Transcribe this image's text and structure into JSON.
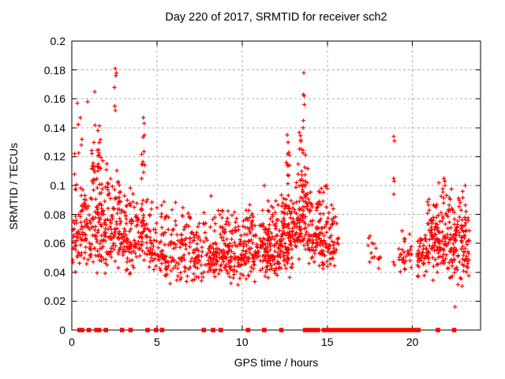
{
  "chart_data": {
    "type": "scatter",
    "title": "Day 220 of 2017, SRMTID for receiver sch2",
    "xlabel": "GPS time / hours",
    "ylabel": "SRMTID / TECUs",
    "xlim": [
      0,
      24
    ],
    "ylim": [
      0,
      0.2
    ],
    "xticks": [
      {
        "v": 0,
        "label": "0"
      },
      {
        "v": 5,
        "label": "5"
      },
      {
        "v": 10,
        "label": "10"
      },
      {
        "v": 15,
        "label": "15"
      },
      {
        "v": 20,
        "label": "20"
      }
    ],
    "yticks": [
      {
        "v": 0,
        "label": "0"
      },
      {
        "v": 0.02,
        "label": "0.02"
      },
      {
        "v": 0.04,
        "label": "0.04"
      },
      {
        "v": 0.06,
        "label": "0.06"
      },
      {
        "v": 0.08,
        "label": "0.08"
      },
      {
        "v": 0.1,
        "label": "0.1"
      },
      {
        "v": 0.12,
        "label": "0.12"
      },
      {
        "v": 0.14,
        "label": "0.14"
      },
      {
        "v": 0.16,
        "label": "0.16"
      },
      {
        "v": 0.18,
        "label": "0.18"
      },
      {
        "v": 0.2,
        "label": "0.2"
      }
    ],
    "grid": "dashed",
    "grid_color": "#b0b0b0",
    "marker": "plus",
    "marker_color": "#ff0000",
    "seed": 2017220,
    "clusters": [
      {
        "t0": 0.05,
        "t1": 0.7,
        "n": 55,
        "y_mode": 0.068,
        "y_min": 0.038,
        "y_max": 0.105
      },
      {
        "t0": 0.1,
        "t1": 0.6,
        "n": 8,
        "y_mode": 0.11,
        "y_min": 0.095,
        "y_max": 0.148
      },
      {
        "t0": 0.7,
        "t1": 2.3,
        "n": 150,
        "y_mode": 0.072,
        "y_min": 0.036,
        "y_max": 0.112
      },
      {
        "t0": 1.15,
        "t1": 1.75,
        "n": 30,
        "y_mode": 0.118,
        "y_min": 0.095,
        "y_max": 0.15
      },
      {
        "t0": 1.75,
        "t1": 2.25,
        "n": 10,
        "y_mode": 0.1,
        "y_min": 0.09,
        "y_max": 0.125
      },
      {
        "t0": 2.3,
        "t1": 3.0,
        "n": 70,
        "y_mode": 0.068,
        "y_min": 0.04,
        "y_max": 0.115
      },
      {
        "t0": 3.0,
        "t1": 4.0,
        "n": 95,
        "y_mode": 0.062,
        "y_min": 0.035,
        "y_max": 0.105
      },
      {
        "t0": 4.05,
        "t1": 4.45,
        "n": 40,
        "y_mode": 0.07,
        "y_min": 0.04,
        "y_max": 0.1
      },
      {
        "t0": 4.1,
        "t1": 4.35,
        "n": 10,
        "y_mode": 0.115,
        "y_min": 0.098,
        "y_max": 0.147
      },
      {
        "t0": 4.5,
        "t1": 5.5,
        "n": 75,
        "y_mode": 0.055,
        "y_min": 0.032,
        "y_max": 0.095
      },
      {
        "t0": 5.5,
        "t1": 7.7,
        "n": 150,
        "y_mode": 0.052,
        "y_min": 0.03,
        "y_max": 0.09
      },
      {
        "t0": 7.7,
        "t1": 10.3,
        "n": 230,
        "y_mode": 0.052,
        "y_min": 0.03,
        "y_max": 0.093
      },
      {
        "t0": 10.3,
        "t1": 12.0,
        "n": 175,
        "y_mode": 0.055,
        "y_min": 0.032,
        "y_max": 0.092
      },
      {
        "t0": 12.0,
        "t1": 13.0,
        "n": 130,
        "y_mode": 0.06,
        "y_min": 0.035,
        "y_max": 0.1
      },
      {
        "t0": 12.55,
        "t1": 12.85,
        "n": 8,
        "y_mode": 0.115,
        "y_min": 0.095,
        "y_max": 0.135
      },
      {
        "t0": 13.0,
        "t1": 13.5,
        "n": 60,
        "y_mode": 0.075,
        "y_min": 0.045,
        "y_max": 0.118
      },
      {
        "t0": 13.35,
        "t1": 13.5,
        "n": 6,
        "y_mode": 0.128,
        "y_min": 0.118,
        "y_max": 0.14
      },
      {
        "t0": 13.5,
        "t1": 13.8,
        "n": 45,
        "y_mode": 0.088,
        "y_min": 0.05,
        "y_max": 0.13
      },
      {
        "t0": 13.8,
        "t1": 14.7,
        "n": 95,
        "y_mode": 0.068,
        "y_min": 0.04,
        "y_max": 0.115
      },
      {
        "t0": 14.7,
        "t1": 15.45,
        "n": 68,
        "y_mode": 0.062,
        "y_min": 0.038,
        "y_max": 0.102
      },
      {
        "t0": 15.45,
        "t1": 15.65,
        "n": 9,
        "y_mode": 0.065,
        "y_min": 0.048,
        "y_max": 0.085
      },
      {
        "t0": 17.3,
        "t1": 18.15,
        "n": 15,
        "y_mode": 0.052,
        "y_min": 0.038,
        "y_max": 0.066
      },
      {
        "t0": 19.2,
        "t1": 19.95,
        "n": 32,
        "y_mode": 0.053,
        "y_min": 0.038,
        "y_max": 0.075
      },
      {
        "t0": 20.25,
        "t1": 20.85,
        "n": 48,
        "y_mode": 0.05,
        "y_min": 0.035,
        "y_max": 0.068
      },
      {
        "t0": 20.85,
        "t1": 23.35,
        "n": 265,
        "y_mode": 0.063,
        "y_min": 0.027,
        "y_max": 0.104
      }
    ],
    "notable_points": [
      [
        0.33,
        0.157
      ],
      [
        0.5,
        0.147
      ],
      [
        0.93,
        0.158
      ],
      [
        1.35,
        0.165
      ],
      [
        2.55,
        0.181
      ],
      [
        2.62,
        0.178
      ],
      [
        2.58,
        0.176
      ],
      [
        2.5,
        0.168
      ],
      [
        2.52,
        0.155
      ],
      [
        2.56,
        0.152
      ],
      [
        4.2,
        0.147
      ],
      [
        4.25,
        0.143
      ],
      [
        11.3,
        0.1
      ],
      [
        12.65,
        0.135
      ],
      [
        12.7,
        0.13
      ],
      [
        12.75,
        0.123
      ],
      [
        12.6,
        0.116
      ],
      [
        13.62,
        0.178
      ],
      [
        13.6,
        0.163
      ],
      [
        13.64,
        0.162
      ],
      [
        13.65,
        0.156
      ],
      [
        13.6,
        0.145
      ],
      [
        13.58,
        0.14
      ],
      [
        14.95,
        0.1
      ],
      [
        15.0,
        0.098
      ],
      [
        18.9,
        0.134
      ],
      [
        18.94,
        0.131
      ],
      [
        18.9,
        0.105
      ],
      [
        18.93,
        0.103
      ],
      [
        18.91,
        0.094
      ],
      [
        18.88,
        0.047
      ],
      [
        18.95,
        0.045
      ],
      [
        21.85,
        0.105
      ],
      [
        21.9,
        0.103
      ],
      [
        22.95,
        0.096
      ],
      [
        23.1,
        0.1
      ],
      [
        22.5,
        0.016
      ]
    ],
    "zero_marks": {
      "marker": "square",
      "color": "#ff0000",
      "singles": [
        0.45,
        0.6,
        1.0,
        1.45,
        1.6,
        2.0,
        2.95,
        3.45,
        4.45,
        4.95,
        5.3,
        7.75,
        8.3,
        8.75,
        10.35,
        11.3,
        12.3,
        14.8,
        19.7,
        21.5,
        22.45
      ],
      "segments": [
        [
          13.7,
          14.45
        ],
        [
          15.05,
          15.3
        ],
        [
          15.5,
          19.55
        ],
        [
          19.9,
          20.35
        ]
      ]
    }
  }
}
